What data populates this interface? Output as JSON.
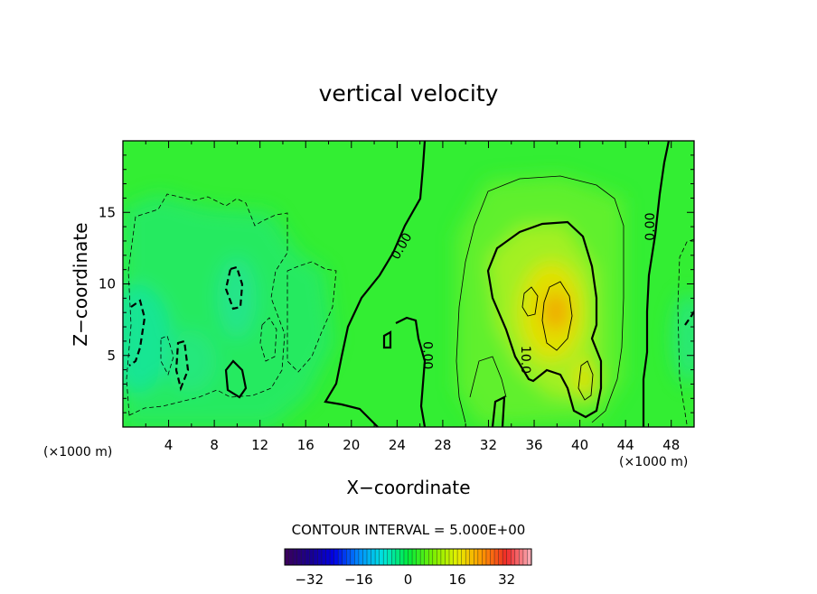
{
  "chart_data": {
    "type": "heatmap",
    "title": "vertical velocity",
    "xlabel": "X−coordinate",
    "ylabel": "Z−coordinate",
    "x_unit_left": "(×1000 m)",
    "x_unit_right": "(×1000 m)",
    "xlim": [
      0,
      50
    ],
    "ylim": [
      0,
      20
    ],
    "x_ticks": [
      4,
      8,
      12,
      16,
      20,
      24,
      28,
      32,
      36,
      40,
      44,
      48
    ],
    "x_tick_labels": [
      "4",
      "8",
      "12",
      "16",
      "20",
      "24",
      "28",
      "32",
      "36",
      "40",
      "44",
      "48"
    ],
    "y_ticks": [
      5,
      10,
      15
    ],
    "y_tick_labels": [
      "5",
      "10",
      "15"
    ],
    "contour_interval_text": "CONTOUR INTERVAL = 5.000E+00",
    "contour_labels": [
      {
        "text": "0.00",
        "x": 24.7,
        "y": 12.5,
        "angle": -60
      },
      {
        "text": "0.00",
        "x": 26.3,
        "y": 5.0,
        "angle": 90
      },
      {
        "text": "0.00",
        "x": 46.5,
        "y": 14.0,
        "angle": -90
      },
      {
        "text": "10.0",
        "x": 34.9,
        "y": 4.7,
        "angle": 90
      }
    ],
    "colorbar": {
      "range": [
        -40,
        40
      ],
      "tick_values": [
        -32,
        -16,
        0,
        16,
        32
      ],
      "tick_labels": [
        "−32",
        "−16",
        "0",
        "16",
        "32"
      ]
    },
    "features": [
      {
        "kind": "updraft",
        "x": 37.5,
        "z": 8.5,
        "peak": 19
      },
      {
        "kind": "updraft",
        "x": 40.0,
        "z": 3.2,
        "peak": 13
      },
      {
        "kind": "downdraft",
        "x": 1.0,
        "z": 6.5,
        "peak": -11
      },
      {
        "kind": "downdraft",
        "x": 9.8,
        "z": 9.5,
        "peak": -10
      }
    ]
  }
}
